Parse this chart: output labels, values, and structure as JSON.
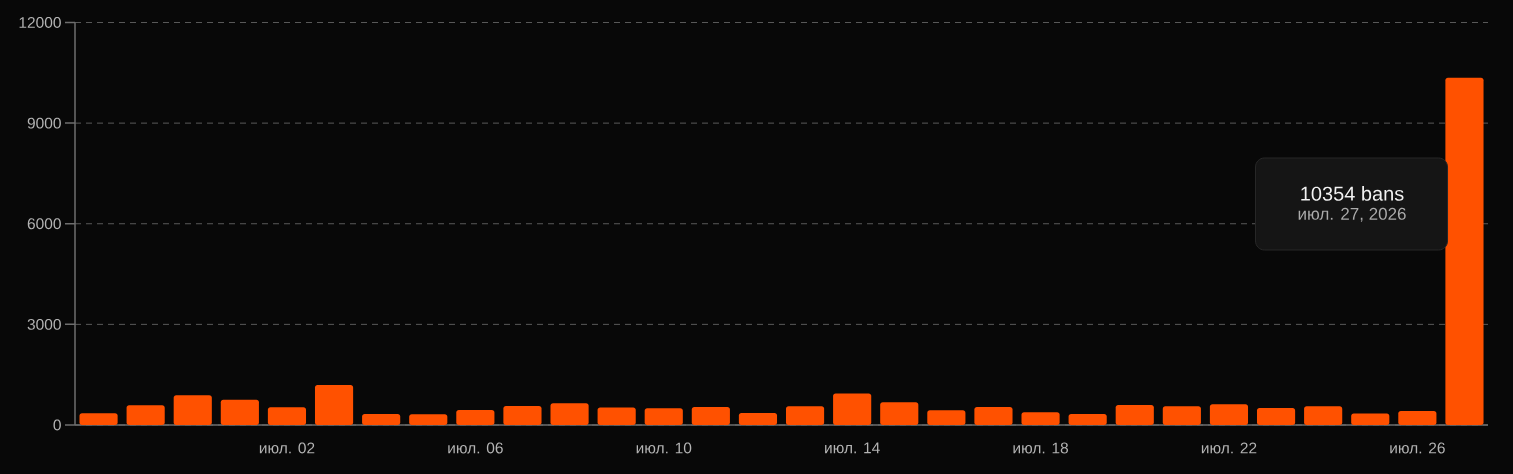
{
  "chart_data": {
    "type": "bar",
    "x": [
      "2026-06-28",
      "2026-06-29",
      "2026-06-30",
      "2026-07-01",
      "2026-07-02",
      "2026-07-03",
      "2026-07-04",
      "2026-07-05",
      "2026-07-06",
      "2026-07-07",
      "2026-07-08",
      "2026-07-09",
      "2026-07-10",
      "2026-07-11",
      "2026-07-12",
      "2026-07-13",
      "2026-07-14",
      "2026-07-15",
      "2026-07-16",
      "2026-07-17",
      "2026-07-18",
      "2026-07-19",
      "2026-07-20",
      "2026-07-21",
      "2026-07-22",
      "2026-07-23",
      "2026-07-24",
      "2026-07-25",
      "2026-07-26",
      "2026-07-27"
    ],
    "values": [
      350,
      590,
      890,
      750,
      530,
      1190,
      330,
      320,
      450,
      570,
      650,
      520,
      500,
      540,
      360,
      560,
      940,
      680,
      440,
      540,
      380,
      330,
      600,
      560,
      620,
      510,
      560,
      340,
      420,
      10354
    ],
    "color": "#ff5100",
    "xlim": [
      "2026-06-27T12:00",
      "2026-07-27T12:00"
    ],
    "xticks": [
      {
        "value": "2026-07-02",
        "label": "июл. 02"
      },
      {
        "value": "2026-07-06",
        "label": "июл. 06"
      },
      {
        "value": "2026-07-10",
        "label": "июл. 10"
      },
      {
        "value": "2026-07-14",
        "label": "июл. 14"
      },
      {
        "value": "2026-07-18",
        "label": "июл. 18"
      },
      {
        "value": "2026-07-22",
        "label": "июл. 22"
      },
      {
        "value": "2026-07-26",
        "label": "июл. 26"
      }
    ],
    "ylim": [
      0,
      12000
    ],
    "yticks": [
      0,
      3000,
      6000,
      9000,
      12000
    ],
    "grid": "y",
    "annotations": [
      "10354 bans",
      "июл. 27, 2026"
    ]
  }
}
